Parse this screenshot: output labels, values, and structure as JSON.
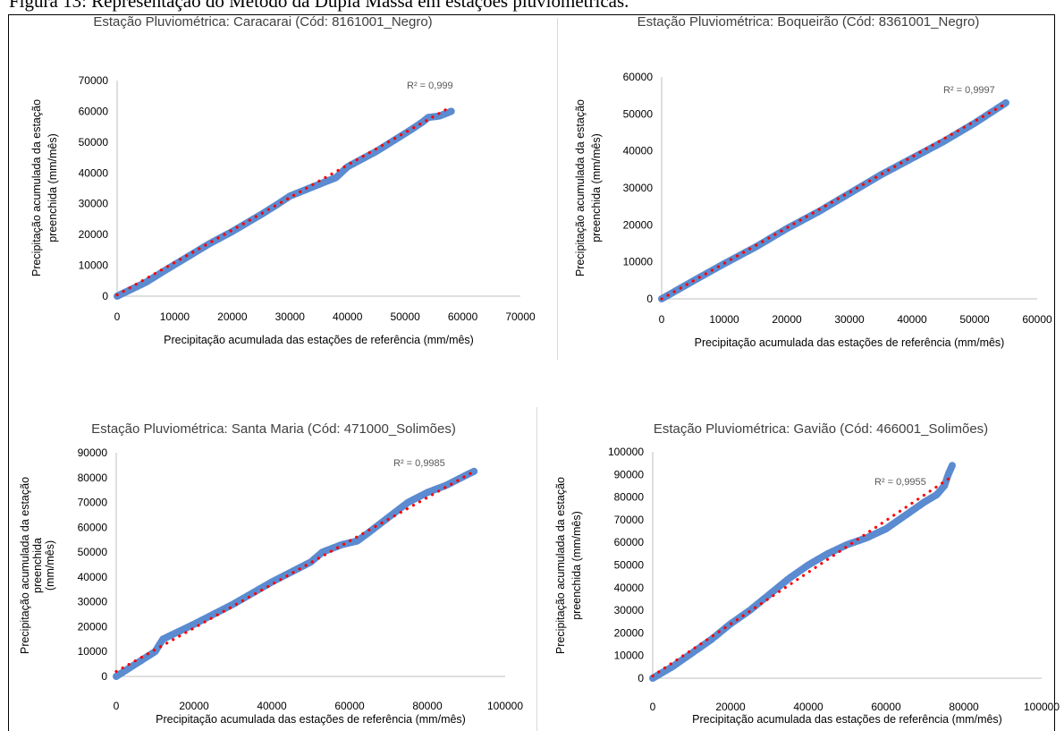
{
  "caption": "Figura 13: Representação do Método da Dupla Massa em estações pluviométricas.",
  "colors": {
    "points": "#5b8bd0",
    "trend": "#ff0000",
    "axis": "#bfbfbf",
    "text": "#404040"
  },
  "chart_data": [
    {
      "type": "scatter",
      "title": "Estação Pluviométrica: Caracarai  (Cód: 8161001_Negro)",
      "xlabel": "Precipitação acumulada das estações de referência (mm/mês)",
      "ylabel": [
        "Precipitação acumulada da estação",
        "preenchida (mm/mês)"
      ],
      "xlim": [
        0,
        70000
      ],
      "ylim": [
        0,
        70000
      ],
      "xticks": [
        "0",
        "10000",
        "20000",
        "30000",
        "40000",
        "50000",
        "60000",
        "70000"
      ],
      "yticks": [
        "0",
        "10000",
        "20000",
        "30000",
        "40000",
        "50000",
        "60000",
        "70000"
      ],
      "r2_label": "R² = 0,999",
      "series": [
        {
          "marker": "circle",
          "x": [
            0,
            2000,
            5000,
            8000,
            12000,
            16000,
            20000,
            25000,
            28000,
            30000,
            32000,
            34000,
            36000,
            38000,
            40000,
            42000,
            45000,
            48000,
            51000,
            53000,
            54000,
            56000,
            58000
          ],
          "y": [
            0,
            1800,
            4500,
            8000,
            12500,
            17000,
            21000,
            26500,
            30000,
            32500,
            34000,
            35500,
            37000,
            38500,
            42000,
            44000,
            47000,
            50500,
            54000,
            56500,
            58000,
            58500,
            60000
          ]
        },
        {
          "trendline": true,
          "x": [
            0,
            57000
          ],
          "y": [
            400,
            60500
          ]
        }
      ]
    },
    {
      "type": "scatter",
      "title": "Estação Pluviométrica: Boqueirão (Cód: 8361001_Negro)",
      "xlabel": "Precipitação acumulada das estações de referência (mm/mês)",
      "ylabel": [
        "Precipitação acumulada da estação",
        "preenchida (mm/mês)"
      ],
      "xlim": [
        0,
        60000
      ],
      "ylim": [
        0,
        60000
      ],
      "xticks": [
        "0",
        "10000",
        "20000",
        "30000",
        "40000",
        "50000",
        "60000"
      ],
      "yticks": [
        "0",
        "10000",
        "20000",
        "30000",
        "40000",
        "50000",
        "60000"
      ],
      "r2_label": "R² = 0,9997",
      "series": [
        {
          "marker": "circle",
          "x": [
            0,
            2000,
            5000,
            10000,
            15000,
            20000,
            25000,
            30000,
            35000,
            40000,
            45000,
            50000,
            55000
          ],
          "y": [
            0,
            1900,
            4800,
            9500,
            14000,
            19000,
            23500,
            28500,
            33500,
            38000,
            42500,
            47500,
            53000
          ]
        },
        {
          "trendline": true,
          "x": [
            0,
            55000
          ],
          "y": [
            0,
            52800
          ]
        }
      ]
    },
    {
      "type": "scatter",
      "title": "Estação Pluviométrica: Santa Maria (Cód: 471000_Solimões)",
      "xlabel": "Precipitação acumulada das estações de referência (mm/mês)",
      "ylabel": [
        "Precipitação acumulada da estação",
        "preenchida",
        "(mm/mês)"
      ],
      "xlim": [
        0,
        100000
      ],
      "ylim": [
        0,
        90000
      ],
      "xticks": [
        "0",
        "20000",
        "40000",
        "60000",
        "80000",
        "100000"
      ],
      "yticks": [
        "0",
        "10000",
        "20000",
        "30000",
        "40000",
        "50000",
        "60000",
        "70000",
        "80000",
        "90000"
      ],
      "r2_label": "R² = 0,9985",
      "series": [
        {
          "marker": "circle",
          "x": [
            0,
            5000,
            10000,
            12000,
            20000,
            30000,
            40000,
            50000,
            53000,
            58000,
            62000,
            65000,
            70000,
            75000,
            80000,
            85000,
            90000,
            92000
          ],
          "y": [
            0,
            5000,
            10000,
            15000,
            21000,
            29000,
            38000,
            46000,
            50000,
            53000,
            54500,
            58000,
            64000,
            70000,
            74000,
            77000,
            81000,
            82500
          ]
        },
        {
          "trendline": true,
          "x": [
            0,
            92000
          ],
          "y": [
            2000,
            82500
          ]
        }
      ]
    },
    {
      "type": "scatter",
      "title": "Estação Pluviométrica: Gavião (Cód: 466001_Solimões)",
      "xlabel": "Precipitação acumulada das estações de referência (mm/mês)",
      "ylabel": [
        "Precipitação acumulada da estação",
        "preenchida (mm/mês)"
      ],
      "xlim": [
        0,
        100000
      ],
      "ylim": [
        0,
        100000
      ],
      "xticks": [
        "0",
        "20000",
        "40000",
        "60000",
        "80000",
        "100000"
      ],
      "yticks": [
        "0",
        "10000",
        "20000",
        "30000",
        "40000",
        "50000",
        "60000",
        "70000",
        "80000",
        "90000",
        "100000"
      ],
      "r2_label": "R² = 0,9955",
      "series": [
        {
          "marker": "circle",
          "x": [
            0,
            5000,
            10000,
            15000,
            20000,
            25000,
            30000,
            35000,
            40000,
            45000,
            50000,
            55000,
            60000,
            65000,
            70000,
            73000,
            75000,
            76000,
            77000
          ],
          "y": [
            0,
            5000,
            11000,
            17000,
            24000,
            30000,
            37000,
            44000,
            50000,
            55000,
            59000,
            62000,
            66000,
            72000,
            78000,
            81000,
            85000,
            90000,
            94000
          ]
        },
        {
          "trendline": true,
          "x": [
            0,
            76000
          ],
          "y": [
            1000,
            88000
          ]
        }
      ]
    }
  ]
}
